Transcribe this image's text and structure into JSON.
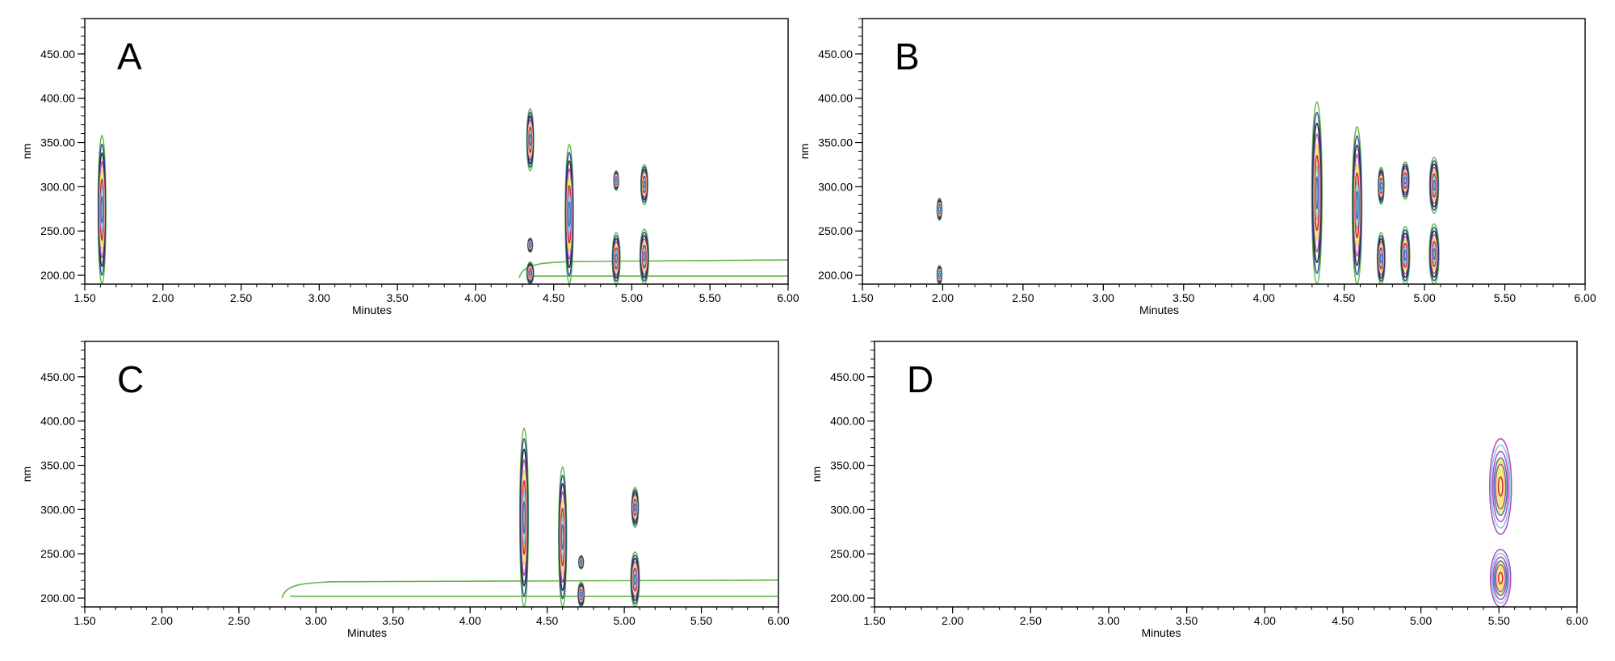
{
  "chart_data": [
    {
      "type": "contour",
      "panel_label": "A",
      "xlabel": "Minutes",
      "ylabel": "nm",
      "xlim": [
        1.5,
        6.0
      ],
      "ylim": [
        190,
        490
      ],
      "xticks": [
        "1.50",
        "2.00",
        "2.50",
        "3.00",
        "3.50",
        "4.00",
        "4.50",
        "5.00",
        "5.50",
        "6.00"
      ],
      "yticks": [
        "200.00",
        "250.00",
        "300.00",
        "350.00",
        "400.00",
        "450.00"
      ],
      "peaks": [
        {
          "x": 1.61,
          "y_min": 190,
          "y_max": 358,
          "width_min": 0.025,
          "fill": "yellow"
        },
        {
          "x": 4.35,
          "y_min": 318,
          "y_max": 388,
          "width_min": 0.022,
          "fill": "yellow"
        },
        {
          "x": 4.35,
          "y_min": 226,
          "y_max": 242,
          "width_min": 0.01,
          "fill": "none"
        },
        {
          "x": 4.35,
          "y_min": 190,
          "y_max": 215,
          "width_min": 0.022,
          "fill": "none"
        },
        {
          "x": 4.6,
          "y_min": 190,
          "y_max": 348,
          "width_min": 0.026,
          "fill": "yellow"
        },
        {
          "x": 4.9,
          "y_min": 296,
          "y_max": 318,
          "width_min": 0.012,
          "fill": "none"
        },
        {
          "x": 4.9,
          "y_min": 190,
          "y_max": 248,
          "width_min": 0.025,
          "fill": "yellow"
        },
        {
          "x": 5.08,
          "y_min": 280,
          "y_max": 325,
          "width_min": 0.022,
          "fill": "yellow"
        },
        {
          "x": 5.08,
          "y_min": 190,
          "y_max": 252,
          "width_min": 0.028,
          "fill": "yellow"
        }
      ],
      "baseline": {
        "x_start": 4.28,
        "x_end": 6.0,
        "y": 210,
        "color": "#63b64a"
      }
    },
    {
      "type": "contour",
      "panel_label": "B",
      "xlabel": "Minutes",
      "ylabel": "nm",
      "xlim": [
        1.5,
        6.0
      ],
      "ylim": [
        190,
        490
      ],
      "xticks": [
        "1.50",
        "2.00",
        "2.50",
        "3.00",
        "3.50",
        "4.00",
        "4.50",
        "5.00",
        "5.50",
        "6.00"
      ],
      "yticks": [
        "200.00",
        "250.00",
        "300.00",
        "350.00",
        "400.00",
        "450.00"
      ],
      "peaks": [
        {
          "x": 1.98,
          "y_min": 262,
          "y_max": 287,
          "width_min": 0.012,
          "fill": "none"
        },
        {
          "x": 1.98,
          "y_min": 190,
          "y_max": 211,
          "width_min": 0.012,
          "fill": "none"
        },
        {
          "x": 4.33,
          "y_min": 190,
          "y_max": 396,
          "width_min": 0.032,
          "fill": "yellow"
        },
        {
          "x": 4.58,
          "y_min": 190,
          "y_max": 368,
          "width_min": 0.03,
          "fill": "yellow"
        },
        {
          "x": 4.73,
          "y_min": 280,
          "y_max": 322,
          "width_min": 0.018,
          "fill": "none"
        },
        {
          "x": 4.73,
          "y_min": 190,
          "y_max": 248,
          "width_min": 0.024,
          "fill": "yellow"
        },
        {
          "x": 4.88,
          "y_min": 286,
          "y_max": 328,
          "width_min": 0.024,
          "fill": "none"
        },
        {
          "x": 4.88,
          "y_min": 190,
          "y_max": 255,
          "width_min": 0.028,
          "fill": "yellow"
        },
        {
          "x": 5.06,
          "y_min": 270,
          "y_max": 333,
          "width_min": 0.028,
          "fill": "yellow"
        },
        {
          "x": 5.06,
          "y_min": 190,
          "y_max": 258,
          "width_min": 0.03,
          "fill": "yellow"
        }
      ],
      "baseline": null
    },
    {
      "type": "contour",
      "panel_label": "C",
      "xlabel": "Minutes",
      "ylabel": "nm",
      "xlim": [
        1.5,
        6.0
      ],
      "ylim": [
        190,
        490
      ],
      "xticks": [
        "1.50",
        "2.00",
        "2.50",
        "3.00",
        "3.50",
        "4.00",
        "4.50",
        "5.00",
        "5.50",
        "6.00"
      ],
      "yticks": [
        "200.00",
        "250.00",
        "300.00",
        "350.00",
        "400.00",
        "450.00"
      ],
      "peaks": [
        {
          "x": 4.35,
          "y_min": 190,
          "y_max": 392,
          "width_min": 0.028,
          "fill": "yellow"
        },
        {
          "x": 4.6,
          "y_min": 190,
          "y_max": 348,
          "width_min": 0.026,
          "fill": "yellow"
        },
        {
          "x": 4.72,
          "y_min": 233,
          "y_max": 248,
          "width_min": 0.01,
          "fill": "none"
        },
        {
          "x": 4.72,
          "y_min": 190,
          "y_max": 218,
          "width_min": 0.02,
          "fill": "yellow"
        },
        {
          "x": 5.07,
          "y_min": 280,
          "y_max": 325,
          "width_min": 0.022,
          "fill": "yellow"
        },
        {
          "x": 5.07,
          "y_min": 190,
          "y_max": 252,
          "width_min": 0.028,
          "fill": "yellow"
        }
      ],
      "baseline": {
        "x_start": 2.78,
        "x_end": 6.0,
        "y": 213,
        "color": "#63b64a"
      }
    },
    {
      "type": "contour",
      "panel_label": "D",
      "xlabel": "Minutes",
      "ylabel": "nm",
      "xlim": [
        1.5,
        6.0
      ],
      "ylim": [
        190,
        490
      ],
      "xticks": [
        "1.50",
        "2.00",
        "2.50",
        "3.00",
        "3.50",
        "4.00",
        "4.50",
        "5.00",
        "5.50",
        "6.00"
      ],
      "yticks": [
        "200.00",
        "250.00",
        "300.00",
        "350.00",
        "400.00",
        "450.00"
      ],
      "peaks": [
        {
          "x": 5.51,
          "y_min": 272,
          "y_max": 380,
          "width_min": 0.07,
          "fill": "yellow"
        },
        {
          "x": 5.51,
          "y_min": 190,
          "y_max": 255,
          "width_min": 0.065,
          "fill": "yellow"
        }
      ],
      "baseline": null
    }
  ],
  "colors": {
    "contour_rings": [
      "#63b64a",
      "#2d4a9a",
      "#2b2b2b",
      "#b04bb8",
      "#e8e870",
      "#d81e4d",
      "#7bc8e8",
      "#3f6fcf"
    ],
    "d_rings": [
      "#b04bb8",
      "#7bc8e8",
      "#b04bb8",
      "#3f6fcf",
      "#b04bb8",
      "#e8e870",
      "#d81e4d"
    ],
    "yellow_fill": "#f2f27a"
  }
}
